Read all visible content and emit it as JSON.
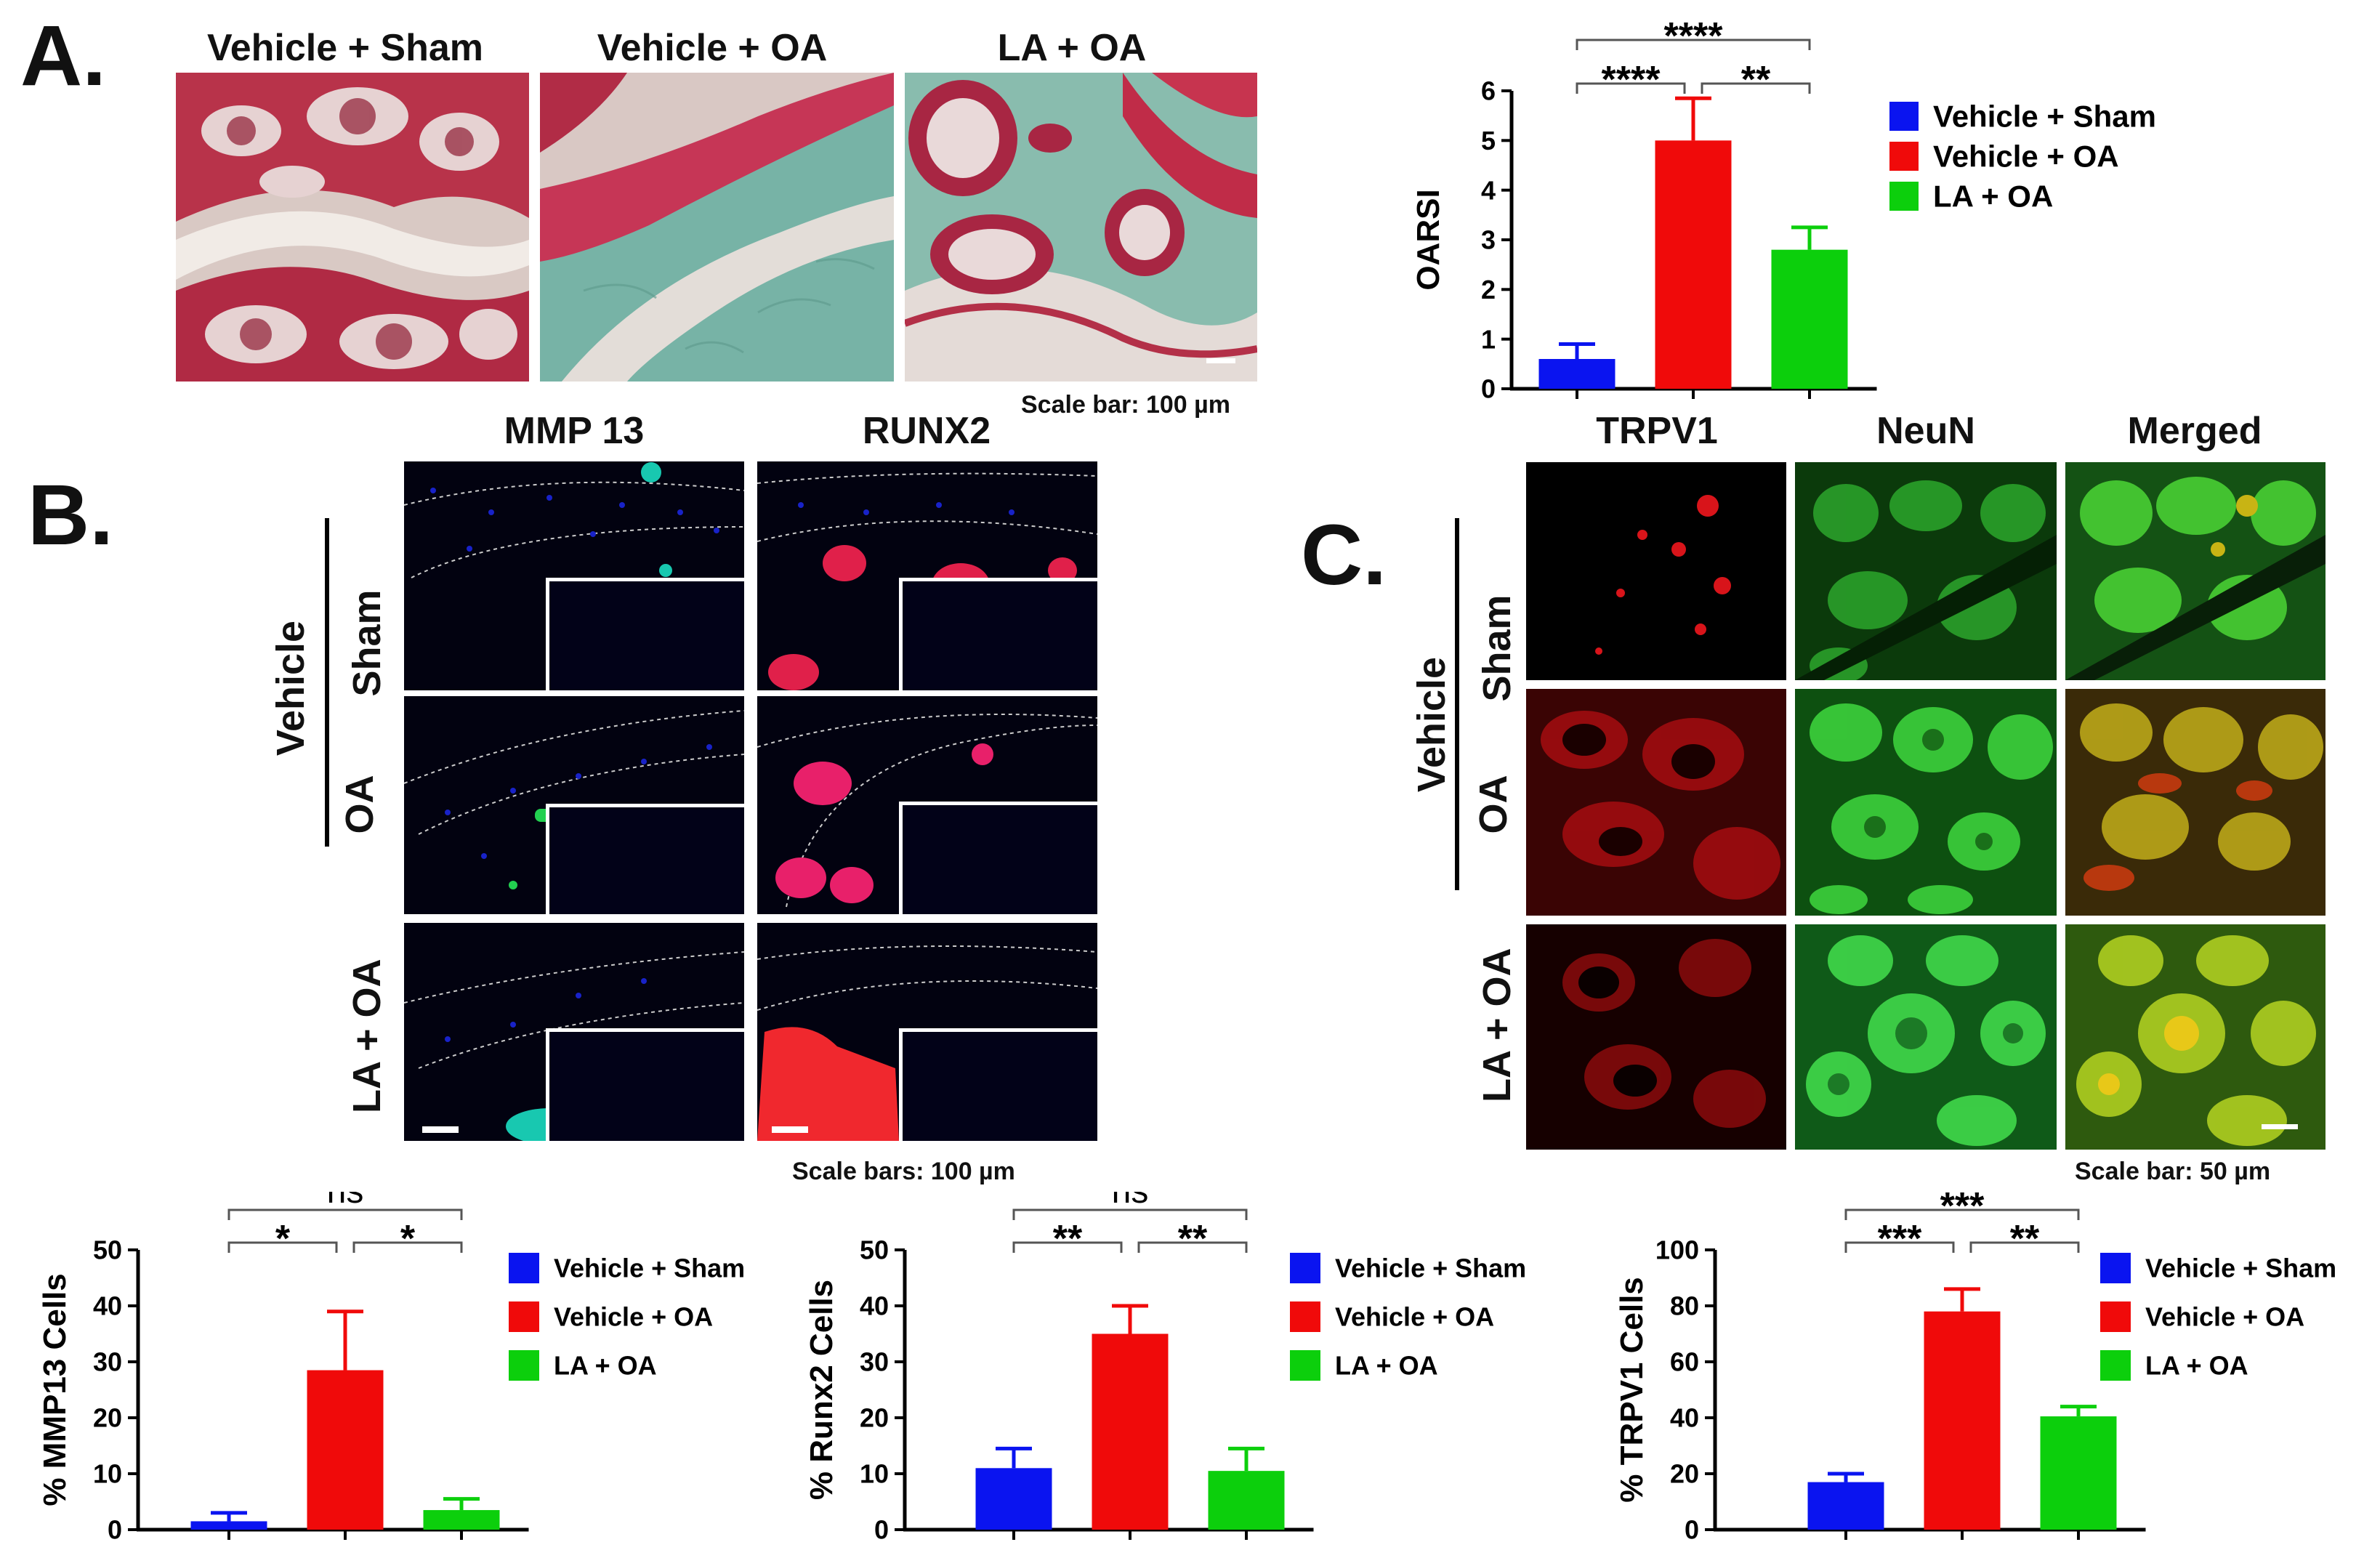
{
  "panelA": {
    "letter": "A.",
    "columns": [
      "Vehicle + Sham",
      "Vehicle + OA",
      "LA + OA"
    ],
    "scale_text": "Scale bar: 100 µm"
  },
  "panelB": {
    "letter": "B.",
    "columns": [
      "MMP 13",
      "RUNX2"
    ],
    "group_label": "Vehicle",
    "rows": [
      "Sham",
      "OA",
      "LA + OA"
    ],
    "scale_text": "Scale bars: 100 µm"
  },
  "panelC": {
    "letter": "C.",
    "columns": [
      "TRPV1",
      "NeuN",
      "Merged"
    ],
    "group_label": "Vehicle",
    "rows": [
      "Sham",
      "OA",
      "LA + OA"
    ],
    "scale_text": "Scale bar: 50 µm"
  },
  "colors": {
    "sham": "#0a14f0",
    "oa": "#f00a0a",
    "la": "#0ccf0c"
  },
  "chart_data": [
    {
      "id": "oarsi",
      "type": "bar",
      "title": "",
      "ylabel": "OARSI",
      "xlabel": "",
      "ylim": [
        0,
        6
      ],
      "yticks": [
        0,
        1,
        2,
        3,
        4,
        5,
        6
      ],
      "categories": [
        "Vehicle + Sham",
        "Vehicle + OA",
        "LA + OA"
      ],
      "values": [
        0.6,
        5.0,
        2.8
      ],
      "errors": [
        0.3,
        0.85,
        0.45
      ],
      "legend": [
        "Vehicle + Sham",
        "Vehicle + OA",
        "LA + OA"
      ],
      "significance": [
        {
          "from": 0,
          "to": 1,
          "label": "****",
          "level": 1
        },
        {
          "from": 1,
          "to": 2,
          "label": "**",
          "level": 1
        },
        {
          "from": 0,
          "to": 2,
          "label": "****",
          "level": 2
        }
      ]
    },
    {
      "id": "mmp13",
      "type": "bar",
      "title": "",
      "ylabel": "% MMP13 Cells",
      "xlabel": "",
      "ylim": [
        0,
        50
      ],
      "yticks": [
        0,
        10,
        20,
        30,
        40,
        50
      ],
      "categories": [
        "Vehicle + Sham",
        "Vehicle + OA",
        "LA + OA"
      ],
      "values": [
        1.5,
        28.5,
        3.5
      ],
      "errors": [
        1.5,
        10.5,
        2.0
      ],
      "legend": [
        "Vehicle + Sham",
        "Vehicle + OA",
        "LA + OA"
      ],
      "significance": [
        {
          "from": 0,
          "to": 1,
          "label": "*",
          "level": 1
        },
        {
          "from": 1,
          "to": 2,
          "label": "*",
          "level": 1
        },
        {
          "from": 0,
          "to": 2,
          "label": "ns",
          "level": 2
        }
      ]
    },
    {
      "id": "runx2",
      "type": "bar",
      "title": "",
      "ylabel": "% Runx2 Cells",
      "xlabel": "",
      "ylim": [
        0,
        50
      ],
      "yticks": [
        0,
        10,
        20,
        30,
        40,
        50
      ],
      "categories": [
        "Vehicle + Sham",
        "Vehicle + OA",
        "LA + OA"
      ],
      "values": [
        11,
        35,
        10.5
      ],
      "errors": [
        3.5,
        5.0,
        4.0
      ],
      "legend": [
        "Vehicle + Sham",
        "Vehicle + OA",
        "LA + OA"
      ],
      "significance": [
        {
          "from": 0,
          "to": 1,
          "label": "**",
          "level": 1
        },
        {
          "from": 1,
          "to": 2,
          "label": "**",
          "level": 1
        },
        {
          "from": 0,
          "to": 2,
          "label": "ns",
          "level": 2
        }
      ]
    },
    {
      "id": "trpv1",
      "type": "bar",
      "title": "",
      "ylabel": "% TRPV1 Cells",
      "xlabel": "",
      "ylim": [
        0,
        100
      ],
      "yticks": [
        0,
        20,
        40,
        60,
        80,
        100
      ],
      "categories": [
        "Vehicle + Sham",
        "Vehicle + OA",
        "LA + OA"
      ],
      "values": [
        17,
        78,
        40.5
      ],
      "errors": [
        3.0,
        8.0,
        3.5
      ],
      "legend": [
        "Vehicle + Sham",
        "Vehicle + OA",
        "LA + OA"
      ],
      "significance": [
        {
          "from": 0,
          "to": 1,
          "label": "***",
          "level": 1
        },
        {
          "from": 1,
          "to": 2,
          "label": "**",
          "level": 1
        },
        {
          "from": 0,
          "to": 2,
          "label": "***",
          "level": 2
        }
      ]
    }
  ]
}
